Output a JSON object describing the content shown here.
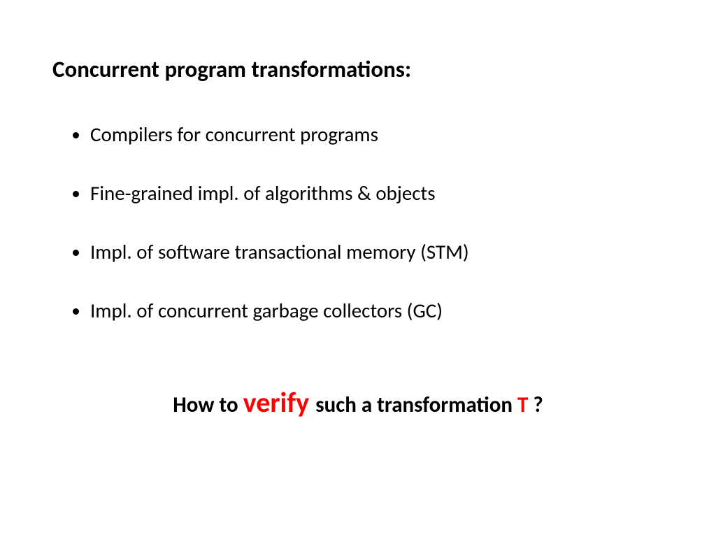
{
  "title": "Concurrent program transformations:",
  "bullets": [
    "Compilers for concurrent programs",
    "Fine-grained impl. of algorithms & objects",
    "Impl. of software transactional memory (STM)",
    "Impl. of concurrent garbage collectors (GC)"
  ],
  "question": {
    "part1": "How to ",
    "verify": "verify ",
    "part2": "such a transformation ",
    "t": "T",
    "part3": " ?"
  },
  "colors": {
    "text": "#000000",
    "highlight": "#ff0000",
    "background": "#ffffff"
  },
  "typography": {
    "title_fontsize": 33,
    "title_weight": 700,
    "bullet_fontsize": 29,
    "bullet_weight": 400,
    "question_plain_fontsize": 31,
    "question_verify_fontsize": 40,
    "question_weight": 700,
    "font_family": "Calibri"
  }
}
